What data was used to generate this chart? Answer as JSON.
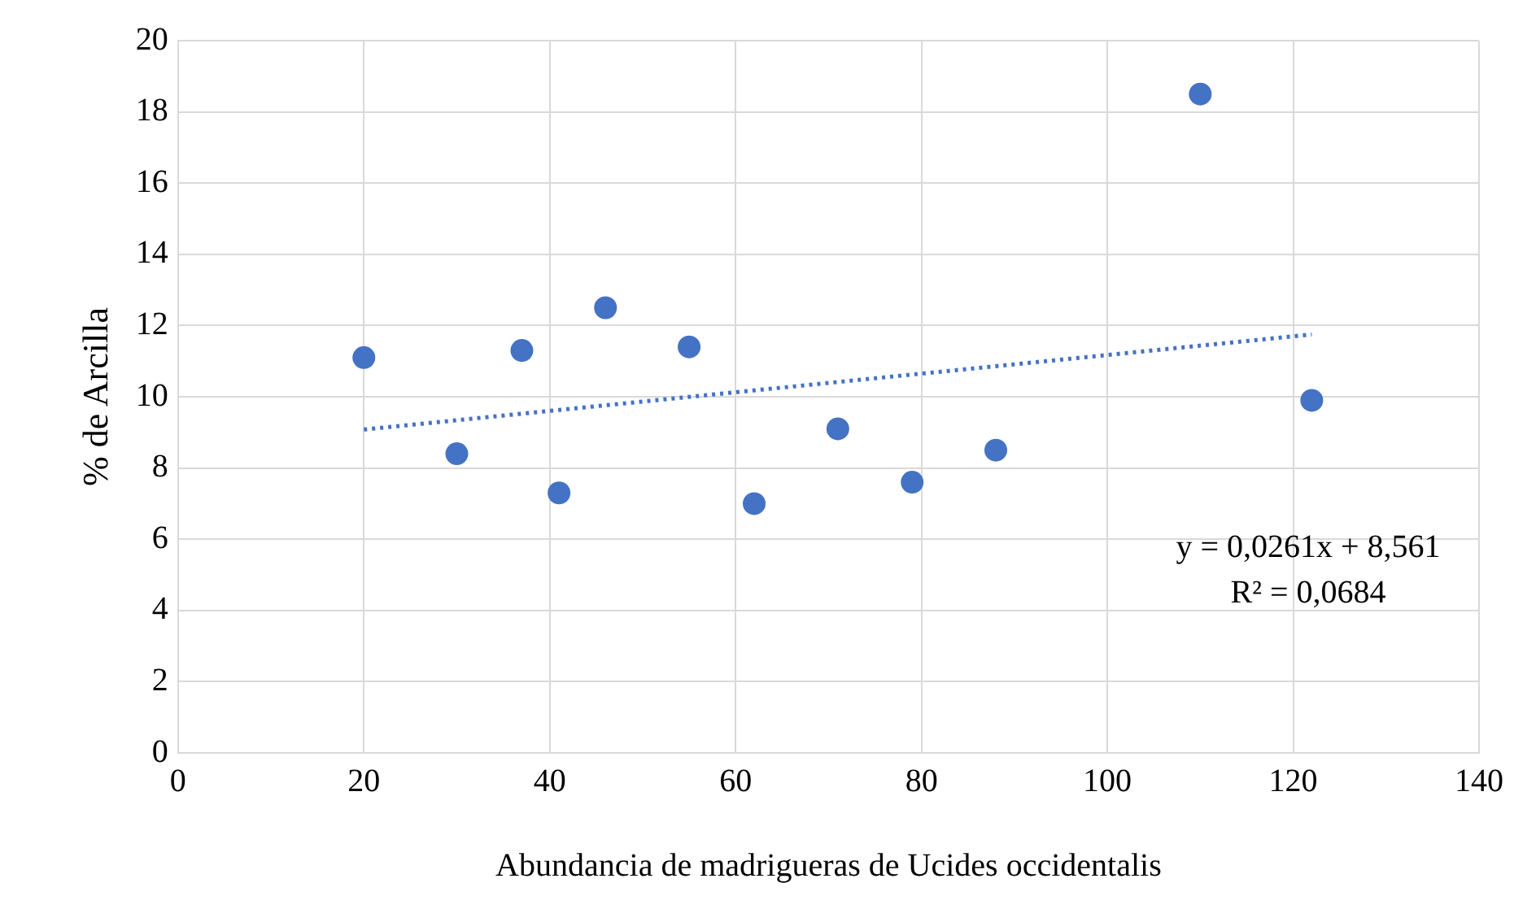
{
  "chart_data": {
    "type": "scatter",
    "xlabel": "Abundancia de madrigueras de Ucides occidentalis",
    "ylabel": "% de Arcilla",
    "xlim": [
      0,
      140
    ],
    "xticks": [
      0,
      20,
      40,
      60,
      80,
      100,
      120,
      140
    ],
    "ylim": [
      0,
      20
    ],
    "yticks": [
      0,
      2,
      4,
      6,
      8,
      10,
      12,
      14,
      16,
      18,
      20
    ],
    "grid": true,
    "legend": false,
    "marker": "circle",
    "series": [
      {
        "type": "scatter",
        "color": "#4472c4",
        "x": [
          20,
          30,
          37,
          41,
          46,
          55,
          62,
          71,
          79,
          88,
          110,
          122
        ],
        "values": [
          11.1,
          8.4,
          11.3,
          7.3,
          12.5,
          11.4,
          7.0,
          9.1,
          7.6,
          8.5,
          18.5,
          9.9
        ]
      },
      {
        "type": "line",
        "color": "#4472c4",
        "line_style": "dotted",
        "marker": "none",
        "x": [
          20,
          122
        ],
        "values": [
          9.08,
          11.75
        ]
      }
    ],
    "annotations": [
      "y = 0,0261x + 8,561",
      "R² = 0,0684"
    ]
  }
}
